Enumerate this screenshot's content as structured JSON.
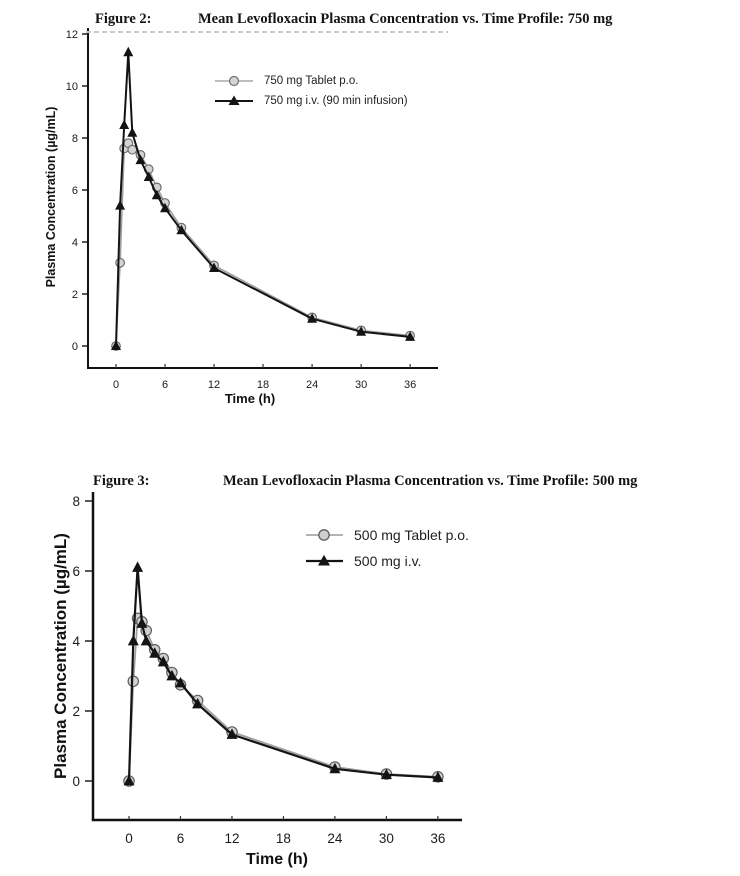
{
  "chart_data": [
    {
      "type": "line",
      "figure_label": "Figure 2:",
      "title": "Mean Levofloxacin Plasma Concentration vs. Time Profile: 750 mg",
      "xlabel": "Time (h)",
      "ylabel": "Plasma Concentration (µg/mL)",
      "xlim": [
        -3.5,
        40
      ],
      "ylim": [
        0,
        12
      ],
      "xticks": [
        0,
        6,
        12,
        18,
        24,
        30,
        36
      ],
      "yticks": [
        0,
        2,
        4,
        6,
        8,
        10,
        12
      ],
      "grid": false,
      "legend_position": "upper-center",
      "x_hours": [
        0,
        0.5,
        1,
        1.5,
        2,
        3,
        4,
        5,
        6,
        8,
        12,
        24,
        30,
        36
      ],
      "series": [
        {
          "name": "750 mg Tablet p.o.",
          "marker": "circle",
          "line_color": "#9e9e9e",
          "marker_fill": "#d4d4d4",
          "marker_stroke": "#6e6e6e",
          "values": [
            0,
            3.2,
            7.6,
            7.8,
            7.55,
            7.35,
            6.8,
            6.1,
            5.5,
            4.55,
            3.1,
            1.1,
            0.6,
            0.4
          ]
        },
        {
          "name": "750 mg i.v. (90 min infusion)",
          "marker": "triangle",
          "line_color": "#141414",
          "marker_fill": "#141414",
          "marker_stroke": "#141414",
          "values": [
            0,
            5.4,
            8.5,
            11.3,
            8.2,
            7.15,
            6.5,
            5.8,
            5.3,
            4.45,
            3.0,
            1.05,
            0.55,
            0.35
          ]
        }
      ]
    },
    {
      "type": "line",
      "figure_label": "Figure 3:",
      "title": "Mean Levofloxacin Plasma Concentration vs. Time Profile: 500 mg",
      "xlabel": "Time (h)",
      "ylabel": "Plasma Concentration (µg/mL)",
      "xlim": [
        -4,
        40
      ],
      "ylim": [
        0,
        8
      ],
      "xticks": [
        0,
        6,
        12,
        18,
        24,
        30,
        36
      ],
      "yticks": [
        0,
        2,
        4,
        6,
        8
      ],
      "grid": false,
      "legend_position": "upper-center",
      "x_hours": [
        0,
        0.5,
        1,
        1.5,
        2,
        3,
        4,
        5,
        6,
        8,
        12,
        24,
        30,
        36
      ],
      "series": [
        {
          "name": "500 mg Tablet p.o.",
          "marker": "circle",
          "line_color": "#9e9e9e",
          "marker_fill": "#cfcfcf",
          "marker_stroke": "#5f5f5f",
          "values": [
            0,
            2.85,
            4.65,
            4.55,
            4.3,
            3.75,
            3.5,
            3.1,
            2.75,
            2.3,
            1.4,
            0.4,
            0.2,
            0.12
          ]
        },
        {
          "name": "500 mg i.v.",
          "marker": "triangle",
          "line_color": "#141414",
          "marker_fill": "#141414",
          "marker_stroke": "#141414",
          "values": [
            0,
            4.0,
            6.1,
            4.5,
            4.0,
            3.65,
            3.4,
            3.0,
            2.8,
            2.2,
            1.33,
            0.35,
            0.18,
            0.1
          ]
        }
      ]
    }
  ]
}
